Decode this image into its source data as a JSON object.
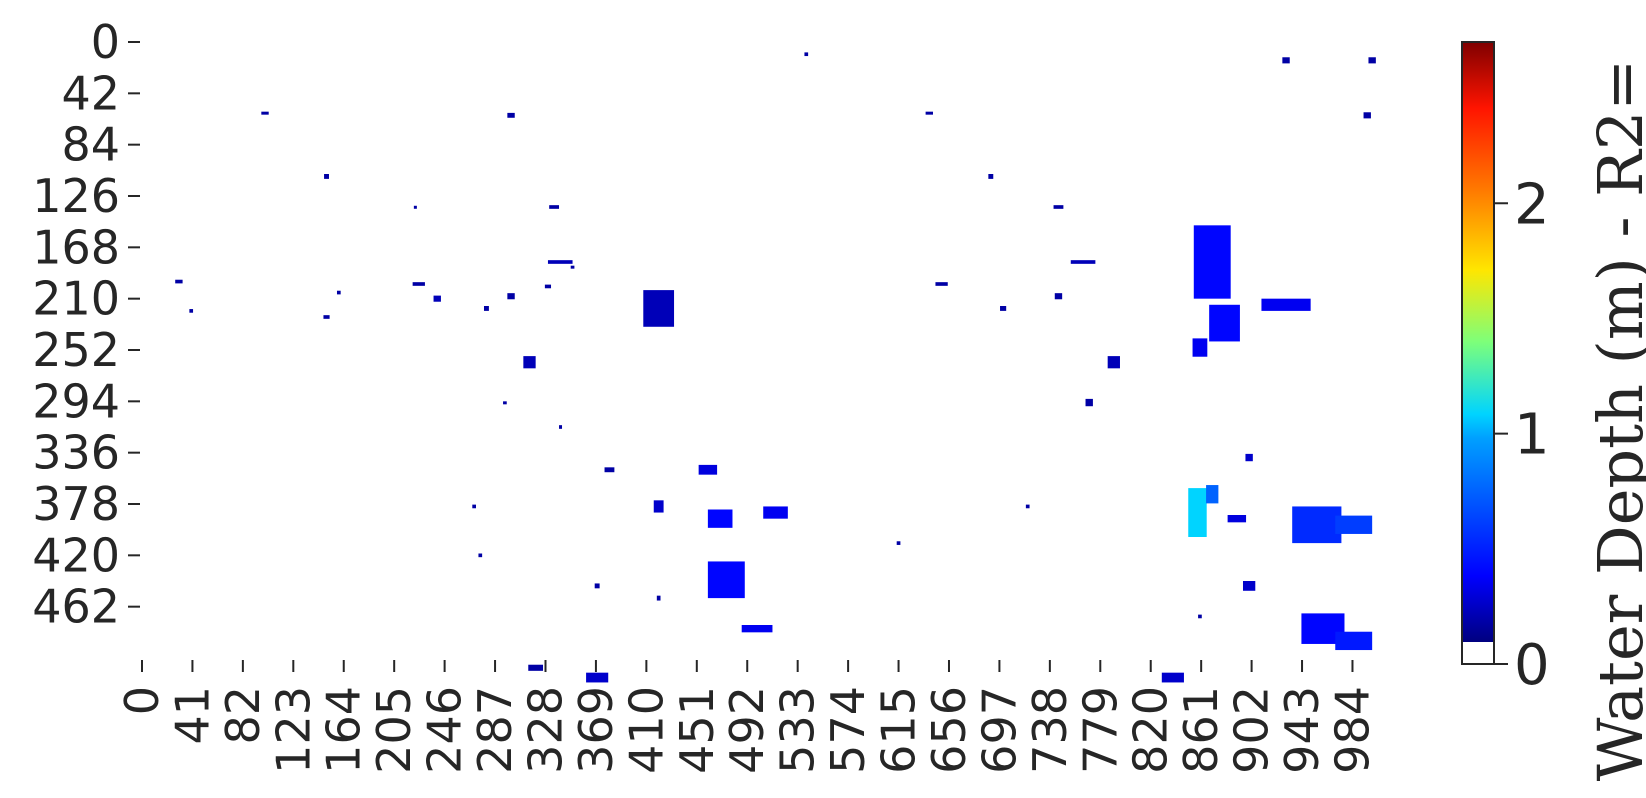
{
  "chart_data": {
    "type": "heatmap",
    "title": "",
    "xlabel": "",
    "ylabel": "",
    "x_ticks": [
      "0",
      "41",
      "82",
      "123",
      "164",
      "205",
      "246",
      "287",
      "328",
      "369",
      "410",
      "451",
      "492",
      "533",
      "574",
      "615",
      "656",
      "697",
      "738",
      "779",
      "820",
      "861",
      "902",
      "943",
      "984"
    ],
    "y_ticks": [
      "0",
      "42",
      "84",
      "126",
      "168",
      "210",
      "252",
      "294",
      "336",
      "378",
      "420",
      "462"
    ],
    "xlim": [
      0,
      1008
    ],
    "ylim": [
      0,
      504
    ],
    "grid": false,
    "colormap": "jet",
    "colorbar": {
      "label": "Water Depth (m) - R2=",
      "range": [
        0,
        2.7
      ],
      "ticks": [
        "0",
        "1",
        "2"
      ],
      "under_color": "#ffffff"
    },
    "description_regions": [
      {
        "panel": "left",
        "x": [
          445,
          490
        ],
        "y": [
          440,
          500
        ],
        "value": 0.4
      },
      {
        "panel": "right",
        "x": [
          855,
          905
        ],
        "y": [
          120,
          250
        ],
        "value": 0.3
      },
      {
        "panel": "right",
        "x": [
          945,
          1000
        ],
        "y": [
          390,
          420
        ],
        "value": 0.5
      }
    ]
  }
}
